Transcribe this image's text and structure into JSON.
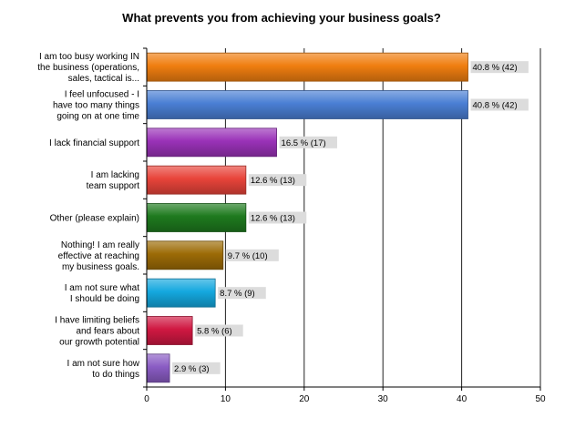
{
  "chart_data": {
    "type": "bar",
    "orientation": "horizontal",
    "title": "What prevents you from achieving your business goals?",
    "xlabel": "",
    "ylabel": "",
    "xlim": [
      0,
      50
    ],
    "x_ticks": [
      0,
      10,
      20,
      30,
      40,
      50
    ],
    "grid": true,
    "categories": [
      [
        "I am too busy working IN",
        "the business (operations,",
        "sales, tactical is..."
      ],
      [
        "I feel unfocused - I",
        "have too many things",
        "going on at one time"
      ],
      [
        "I lack financial support"
      ],
      [
        "I am lacking",
        "team support"
      ],
      [
        "Other (please explain)"
      ],
      [
        "Nothing! I am really",
        "effective at reaching",
        "my business goals."
      ],
      [
        "I am not sure what",
        "I should be doing"
      ],
      [
        "I have limiting beliefs",
        "and fears about",
        "our growth potential"
      ],
      [
        "I am not sure how",
        "to do things"
      ]
    ],
    "values": [
      40.8,
      40.8,
      16.5,
      12.6,
      12.6,
      9.7,
      8.7,
      5.8,
      2.9
    ],
    "counts": [
      42,
      42,
      17,
      13,
      13,
      10,
      9,
      6,
      3
    ],
    "data_labels": [
      "40.8 % (42)",
      "40.8 % (42)",
      "16.5 % (17)",
      "12.6 % (13)",
      "12.6 % (13)",
      "9.7 % (10)",
      "8.7 % (9)",
      "5.8 % (6)",
      "2.9 % (3)"
    ],
    "colors": [
      "#f07e10",
      "#4a7fd4",
      "#9a32b8",
      "#e8443a",
      "#1e7a1e",
      "#9c6b06",
      "#14a8df",
      "#d01842",
      "#8a5cc4"
    ]
  }
}
